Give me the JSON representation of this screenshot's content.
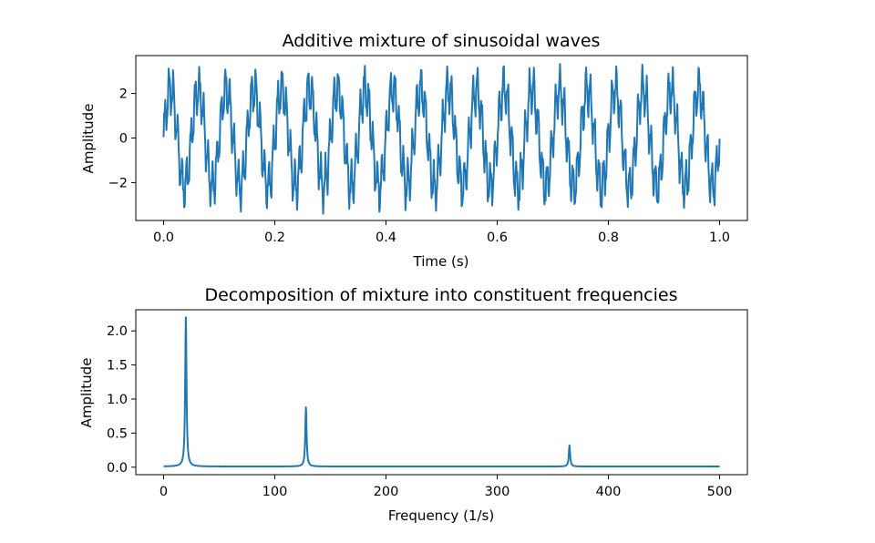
{
  "chart_data": [
    {
      "type": "line",
      "title": "Additive mixture of sinusoidal waves",
      "xlabel": "Time (s)",
      "ylabel": "Amplitude",
      "xlim": [
        -0.05,
        1.05
      ],
      "ylim": [
        -3.7,
        3.7
      ],
      "xticks": [
        0.0,
        0.2,
        0.4,
        0.6,
        0.8,
        1.0
      ],
      "xtick_labels": [
        "0.0",
        "0.2",
        "0.4",
        "0.6",
        "0.8",
        "1.0"
      ],
      "yticks": [
        -2,
        0,
        2
      ],
      "ytick_labels": [
        "−2",
        "0",
        "2"
      ],
      "signal": {
        "components": [
          {
            "frequency": 20,
            "amplitude": 2.2
          },
          {
            "frequency": 128,
            "amplitude": 0.9
          },
          {
            "frequency": 365,
            "amplitude": 0.32
          }
        ],
        "t_start": 0.0,
        "t_end": 1.0,
        "sample_rate": 1000
      },
      "color": "#1f77b4",
      "grid": false
    },
    {
      "type": "line",
      "title": "Decomposition of mixture into constituent frequencies",
      "xlabel": "Frequency (1/s)",
      "ylabel": "Amplitude",
      "xlim": [
        -25,
        525
      ],
      "ylim": [
        -0.11,
        2.31
      ],
      "xticks": [
        0,
        100,
        200,
        300,
        400,
        500
      ],
      "xtick_labels": [
        "0",
        "100",
        "200",
        "300",
        "400",
        "500"
      ],
      "yticks": [
        0.0,
        0.5,
        1.0,
        1.5,
        2.0
      ],
      "ytick_labels": [
        "0.0",
        "0.5",
        "1.0",
        "1.5",
        "2.0"
      ],
      "baseline": 0.01,
      "peaks": [
        {
          "frequency": 20,
          "amplitude": 2.2
        },
        {
          "frequency": 128,
          "amplitude": 0.88
        },
        {
          "frequency": 365,
          "amplitude": 0.32
        }
      ],
      "x_end": 500,
      "color": "#1f77b4",
      "grid": false
    }
  ]
}
